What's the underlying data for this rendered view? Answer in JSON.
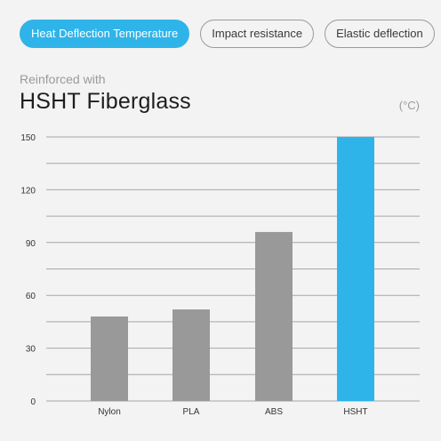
{
  "tabs": [
    {
      "label": "Heat Deflection Temperature",
      "active": true
    },
    {
      "label": "Impact resistance",
      "active": false
    },
    {
      "label": "Elastic deflection",
      "active": false
    }
  ],
  "header": {
    "subtitle": "Reinforced with",
    "title": "HSHT Fiberglass",
    "unit": "(°C)"
  },
  "colors": {
    "accent": "#2fb4e9",
    "bar_default": "#999999",
    "grid": "#a6a6a6"
  },
  "chart_data": {
    "type": "bar",
    "categories": [
      "Nylon",
      "PLA",
      "ABS",
      "HSHT"
    ],
    "values": [
      48,
      52,
      96,
      150
    ],
    "highlight": "HSHT",
    "ylim": [
      0,
      150
    ],
    "yticks": [
      0,
      30,
      60,
      90,
      120,
      150
    ],
    "grid": true
  }
}
